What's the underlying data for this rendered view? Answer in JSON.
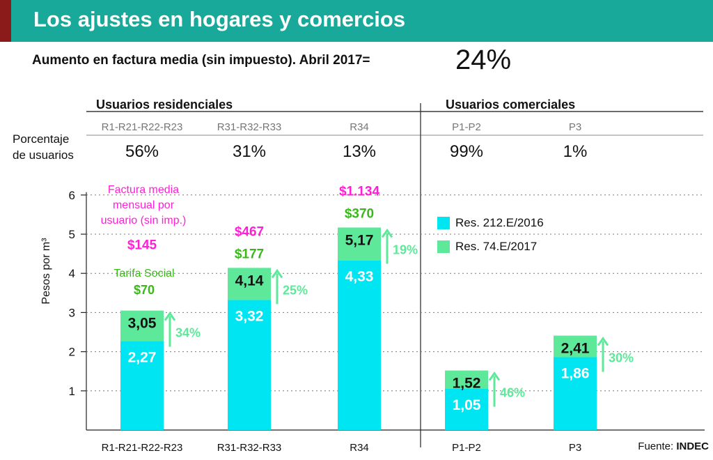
{
  "header": {
    "title": "Los ajustes en hogares y comercios"
  },
  "subtitle": {
    "text": "Aumento en factura media (sin impuesto). Abril 2017=",
    "value": "24%"
  },
  "groups": {
    "residential": "Usuarios residenciales",
    "commercial": "Usuarios comerciales"
  },
  "users_row": {
    "label_line1": "Porcentaje",
    "label_line2": "de usuarios"
  },
  "legend": {
    "items": [
      {
        "label": "Res. 212.E/2016",
        "color": "#00e5f2"
      },
      {
        "label": "Res. 74.E/2017",
        "color": "#5ee89a"
      }
    ]
  },
  "annotations": {
    "factura_line1": "Factura media",
    "factura_line2": "mensual por",
    "factura_line3": "usuario (sin imp.)",
    "tarifa_social": "Tarifa Social",
    "tarifa_social_value": "$70"
  },
  "source": {
    "prefix": "Fuente: ",
    "name": "INDEC"
  },
  "colors": {
    "header": "#18a99a",
    "old": "#00e5f2",
    "new": "#5ee89a",
    "magenta": "#ff1fd6",
    "green": "#39b81a",
    "pct": "#5ee89a"
  },
  "chart_data": {
    "type": "bar",
    "categories": [
      "R1-R21-R22-R23",
      "R31-R32-R33",
      "R34",
      "P1-P2",
      "P3"
    ],
    "category_groups": [
      "residential",
      "residential",
      "residential",
      "commercial",
      "commercial"
    ],
    "user_share": [
      "56%",
      "31%",
      "13%",
      "99%",
      "1%"
    ],
    "series": [
      {
        "name": "Res. 212.E/2016",
        "values": [
          2.27,
          3.32,
          4.33,
          1.05,
          1.86
        ]
      },
      {
        "name": "Res. 74.E/2017",
        "values": [
          3.05,
          4.14,
          5.17,
          1.52,
          2.41
        ]
      }
    ],
    "old_labels": [
      "2,27",
      "3,32",
      "4,33",
      "1,05",
      "1,86"
    ],
    "new_labels": [
      "3,05",
      "4,14",
      "5,17",
      "1,52",
      "2,41"
    ],
    "increase": [
      "34%",
      "25%",
      "19%",
      "46%",
      "30%"
    ],
    "invoice_old": [
      "$145",
      "$467",
      "$1.134",
      "",
      ""
    ],
    "invoice_new": [
      "",
      "$177",
      "$370",
      "",
      ""
    ],
    "ylabel": "Pesos por m³",
    "ylim": [
      0,
      6
    ],
    "yticks": [
      1,
      2,
      3,
      4,
      5,
      6
    ]
  }
}
